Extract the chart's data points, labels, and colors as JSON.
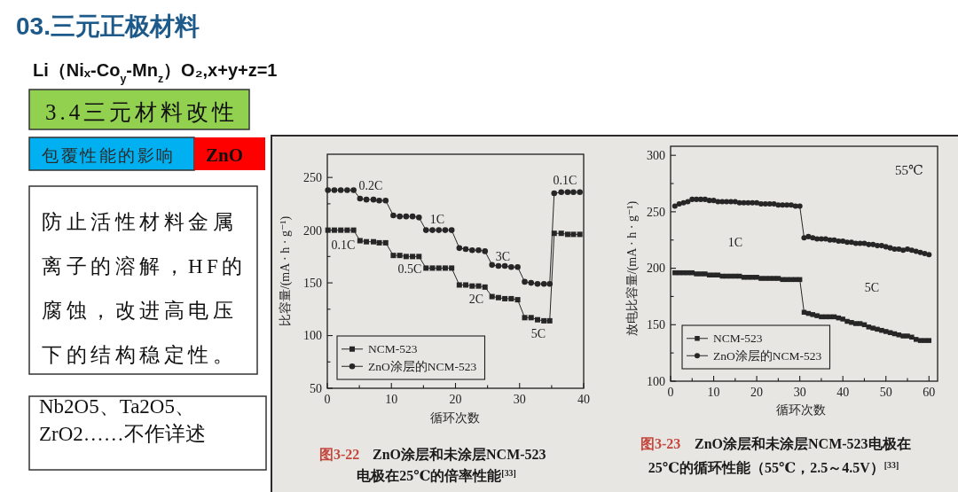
{
  "chart_data": [
    {
      "type": "other",
      "title": "03.三元正极材料",
      "annotations": [
        "Li（Niₓ-Co$_{y}$-Mn$_{z}$）O₂,x+y+z=1",
        "3.4三元材料改性",
        "包覆性能的影响",
        "ZnO",
        "防止活性材料金属离子的溶解，HF的腐蚀，改进高电压下的结构稳定性。",
        "Nb2O5、Ta2O5、ZrO2……不作详述"
      ]
    },
    {
      "type": "line",
      "x": [
        0.1,
        1.1,
        2.1,
        3.1,
        4.1,
        5.1,
        6.1,
        7.2,
        8.1,
        9.1,
        10.3,
        11.3,
        12.3,
        13.3,
        14.3,
        15.4,
        16.4,
        17.4,
        18.4,
        19.4,
        20.6,
        21.6,
        22.6,
        23.6,
        24.6,
        25.7,
        26.7,
        27.7,
        28.7,
        29.7,
        30.8,
        31.8,
        32.8,
        33.8,
        34.7,
        35.4,
        36.5,
        37.5,
        38.4,
        39.4
      ],
      "series": [
        {
          "name": "NCM-523",
          "color": "#262626",
          "marker": "square",
          "values": [
            200,
            200,
            200,
            200,
            200,
            190,
            189,
            189,
            188,
            188,
            176,
            176,
            175,
            175,
            175,
            164,
            164,
            164,
            164,
            164,
            148,
            148,
            147,
            147,
            146,
            137,
            136,
            135,
            135,
            134,
            117,
            117,
            115,
            114,
            114,
            197,
            197,
            196,
            196,
            196
          ]
        },
        {
          "name": "ZnO涂层的NCM-523",
          "color": "#262626",
          "marker": "circle",
          "values": [
            238,
            238,
            238,
            238,
            238,
            230,
            229,
            229,
            228,
            228,
            214,
            213,
            213,
            213,
            212,
            200,
            200,
            200,
            200,
            200,
            183,
            182,
            181,
            181,
            180,
            167,
            166,
            166,
            165,
            165,
            151,
            150,
            149,
            149,
            149,
            235,
            236,
            236,
            236,
            236
          ]
        }
      ],
      "xlabel": "循环次数",
      "ylabel": "比容量/(mA · h · g⁻¹)",
      "xlim": [
        0,
        40
      ],
      "ylim": [
        50,
        272
      ],
      "xticks": [
        0,
        {
          "value": 5,
          "label": null
        },
        10,
        {
          "value": 15,
          "label": null
        },
        20,
        {
          "value": 25,
          "label": null
        },
        30,
        {
          "value": 35,
          "label": null
        },
        40
      ],
      "yticks": [
        50,
        {
          "value": 75,
          "label": null
        },
        100,
        {
          "value": 125,
          "label": null
        },
        150,
        {
          "value": 175,
          "label": null
        },
        200,
        {
          "value": 225,
          "label": null
        },
        250
      ],
      "legend": "bottom left",
      "annotations": [
        "0.1C",
        "0.2C",
        "1C",
        "0.5C",
        "3C",
        "2C",
        "5C",
        "0.1C",
        "图3-22",
        "ZnO涂层和未涂层NCM-523电极在25℃的倍率性能$^{[33]}$"
      ]
    },
    {
      "type": "line",
      "x": [
        1,
        2,
        3,
        4,
        5,
        6,
        7,
        8,
        9,
        10,
        11,
        12,
        13,
        14,
        15,
        16,
        17,
        18,
        19,
        20,
        21,
        22,
        23,
        24,
        25,
        26,
        27,
        28,
        29,
        30,
        31,
        32,
        33,
        34,
        35,
        36,
        37,
        38,
        39,
        40,
        41,
        42,
        43,
        44,
        45,
        46,
        47,
        48,
        49,
        50,
        51,
        52,
        53,
        54,
        55,
        56,
        57,
        58,
        59,
        60
      ],
      "series": [
        {
          "name": "NCM-523",
          "color": "#262626",
          "marker": "square",
          "values": [
            196,
            196,
            196,
            196,
            196,
            195,
            195,
            195,
            194,
            194,
            194,
            193,
            193,
            193,
            193,
            193,
            192,
            192,
            192,
            192,
            191,
            191,
            191,
            191,
            191,
            190,
            190,
            190,
            190,
            190,
            161,
            160,
            159,
            158,
            157,
            157,
            157,
            157,
            156,
            155,
            153,
            152,
            151,
            151,
            150,
            148,
            147,
            146,
            145,
            144,
            143,
            142,
            141,
            140,
            140,
            139,
            137,
            136,
            136,
            136
          ]
        },
        {
          "name": "ZnO涂层的NCM-523",
          "color": "#262626",
          "marker": "circle",
          "values": [
            255,
            257,
            258,
            259,
            261,
            261,
            261,
            261,
            260,
            260,
            259,
            259,
            259,
            259,
            259,
            258,
            258,
            258,
            258,
            258,
            257,
            257,
            257,
            257,
            256,
            256,
            256,
            256,
            255,
            255,
            227,
            228,
            227,
            226,
            226,
            226,
            225,
            225,
            224,
            224,
            223,
            223,
            222,
            222,
            222,
            221,
            221,
            220,
            220,
            219,
            218,
            217,
            217,
            216,
            217,
            216,
            215,
            214,
            213,
            212
          ]
        }
      ],
      "xlabel": "循环次数",
      "ylabel": "放电比容量/(mA · h · g⁻¹)",
      "xlim": [
        0,
        62
      ],
      "ylim": [
        100,
        308
      ],
      "xticks": [
        0,
        {
          "value": 5,
          "label": null
        },
        10,
        {
          "value": 15,
          "label": null
        },
        20,
        {
          "value": 25,
          "label": null
        },
        30,
        {
          "value": 35,
          "label": null
        },
        40,
        {
          "value": 45,
          "label": null
        },
        50,
        {
          "value": 55,
          "label": null
        },
        60
      ],
      "yticks": [
        100,
        {
          "value": 125,
          "label": null
        },
        150,
        {
          "value": 175,
          "label": null
        },
        200,
        {
          "value": 225,
          "label": null
        },
        250,
        {
          "value": 275,
          "label": null
        },
        300
      ],
      "legend": "bottom left",
      "annotations": [
        "55℃",
        "1C",
        "5C",
        "图3-23",
        "ZnO涂层和未涂层NCM-523电极在25℃的循环性能（55℃，2.5～4.5V）$^{[33]}$"
      ]
    }
  ]
}
